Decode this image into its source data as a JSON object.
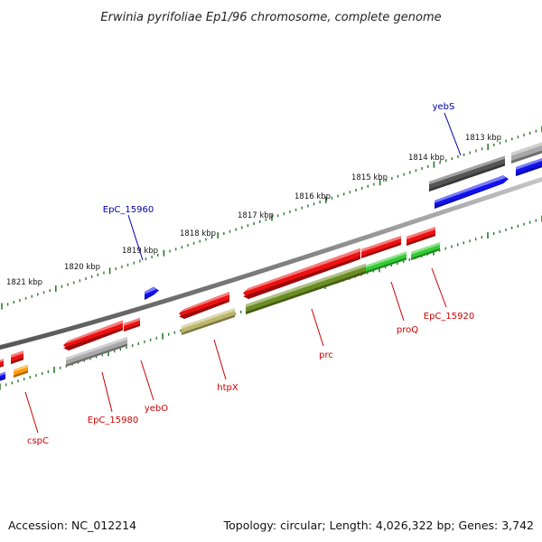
{
  "title": "Erwinia pyrifoliae Ep1/96 chromosome, complete genome",
  "footer": {
    "accession": "Accession: NC_012214",
    "summary": "Topology: circular; Length: 4,026,322 bp; Genes: 3,742"
  },
  "colors": {
    "backbone": "#808080",
    "tick": "#2a7a2a",
    "label_red": "#cc0000",
    "label_blue": "#0000aa",
    "red": "#ee1111",
    "blue": "#1111ee",
    "grey": "#a8a8a8",
    "darkgrey": "#555555",
    "olive": "#6b8e23",
    "khaki": "#bdb76b",
    "green": "#33cc33",
    "orange": "#ff9900"
  },
  "kbp_labels": [
    "1813 kbp",
    "1814 kbp",
    "1815 kbp",
    "1816 kbp",
    "1817 kbp",
    "1818 kbp",
    "1819 kbp",
    "1820 kbp",
    "1821 kbp"
  ],
  "gene_labels": [
    {
      "text": "yebS",
      "color": "blue"
    },
    {
      "text": "EpC_15960",
      "color": "blue"
    },
    {
      "text": "EpC_15920",
      "color": "red"
    },
    {
      "text": "proQ",
      "color": "red"
    },
    {
      "text": "prc",
      "color": "red"
    },
    {
      "text": "htpX",
      "color": "red"
    },
    {
      "text": "yebO",
      "color": "red"
    },
    {
      "text": "EpC_15980",
      "color": "red"
    },
    {
      "text": "cspC",
      "color": "red"
    }
  ]
}
